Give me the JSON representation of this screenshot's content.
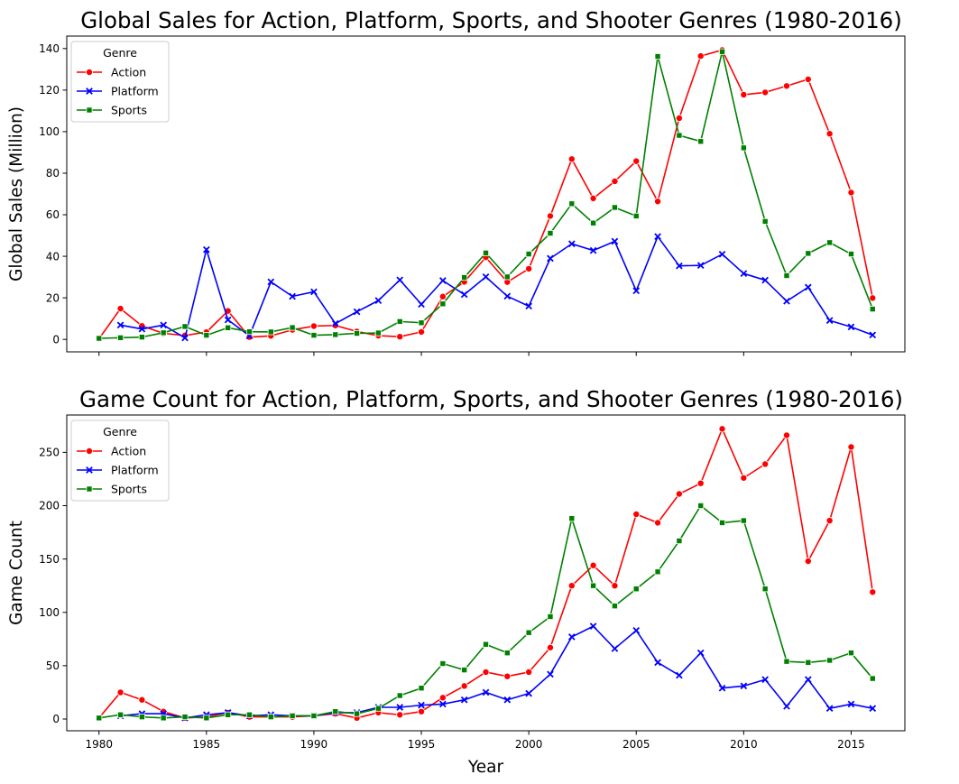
{
  "chart_data": [
    {
      "type": "line",
      "title": "Global Sales for Action, Platform, Sports, and Shooter Genres (1980-2016)",
      "xlabel": "",
      "ylabel": "Global Sales (Million)",
      "xlim": [
        1978.5,
        2017.5
      ],
      "ylim": [
        -6,
        146
      ],
      "xticks": [
        1980,
        1985,
        1990,
        1995,
        2000,
        2005,
        2010,
        2015
      ],
      "yticks": [
        0,
        20,
        40,
        60,
        80,
        100,
        120,
        140
      ],
      "show_xtick_labels": false,
      "grid": false,
      "legend": {
        "title": "Genre",
        "placement": "top-left"
      },
      "x": [
        1980,
        1981,
        1982,
        1983,
        1984,
        1985,
        1986,
        1987,
        1988,
        1989,
        1990,
        1991,
        1992,
        1993,
        1994,
        1995,
        1996,
        1997,
        1998,
        1999,
        2000,
        2001,
        2002,
        2003,
        2004,
        2005,
        2006,
        2007,
        2008,
        2009,
        2010,
        2011,
        2012,
        2013,
        2014,
        2015,
        2016
      ],
      "series": [
        {
          "name": "Action",
          "color": "#ff0000",
          "marker": "circle",
          "values": [
            0.3,
            14.8,
            6.5,
            2.9,
            1.9,
            3.5,
            13.7,
            1.1,
            1.7,
            4.6,
            6.4,
            6.7,
            3.8,
            1.8,
            1.3,
            3.6,
            20.6,
            27.7,
            39.5,
            27.6,
            34.0,
            59.4,
            86.8,
            67.9,
            76.1,
            85.8,
            66.4,
            106.5,
            136.4,
            139.3,
            117.8,
            118.9,
            122.0,
            125.2,
            99.0,
            70.7,
            19.9
          ]
        },
        {
          "name": "Platform",
          "color": "#0000ff",
          "marker": "x",
          "values": [
            null,
            6.9,
            5.0,
            6.9,
            0.7,
            43.2,
            9.4,
            1.7,
            27.7,
            20.7,
            22.9,
            7.6,
            13.3,
            18.7,
            28.6,
            16.9,
            28.3,
            21.6,
            30.1,
            20.8,
            16.0,
            39.0,
            46.0,
            42.8,
            47.2,
            23.4,
            49.5,
            35.4,
            35.6,
            41.0,
            31.7,
            28.5,
            18.4,
            25.1,
            9.1,
            6.0,
            2.1
          ]
        },
        {
          "name": "Sports",
          "color": "#008000",
          "marker": "square",
          "values": [
            0.5,
            0.8,
            1.1,
            3.2,
            6.2,
            2.0,
            5.6,
            3.7,
            3.6,
            5.7,
            2.0,
            2.3,
            2.9,
            3.1,
            8.6,
            8.0,
            17.1,
            29.8,
            41.6,
            30.1,
            41.1,
            51.1,
            65.3,
            56.0,
            63.5,
            59.4,
            136.2,
            98.2,
            95.3,
            138.5,
            92.2,
            56.8,
            30.7,
            41.4,
            46.6,
            41.1,
            14.6
          ]
        }
      ]
    },
    {
      "type": "line",
      "title": "Game Count for Action, Platform, Sports, and Shooter Genres (1980-2016)",
      "xlabel": "Year",
      "ylabel": "Game Count",
      "xlim": [
        1978.5,
        2017.5
      ],
      "ylim": [
        -11,
        285
      ],
      "xticks": [
        1980,
        1985,
        1990,
        1995,
        2000,
        2005,
        2010,
        2015
      ],
      "yticks": [
        0,
        50,
        100,
        150,
        200,
        250
      ],
      "show_xtick_labels": true,
      "grid": false,
      "legend": {
        "title": "Genre",
        "placement": "top-left"
      },
      "x": [
        1980,
        1981,
        1982,
        1983,
        1984,
        1985,
        1986,
        1987,
        1988,
        1989,
        1990,
        1991,
        1992,
        1993,
        1994,
        1995,
        1996,
        1997,
        1998,
        1999,
        2000,
        2001,
        2002,
        2003,
        2004,
        2005,
        2006,
        2007,
        2008,
        2009,
        2010,
        2011,
        2012,
        2013,
        2014,
        2015,
        2016
      ],
      "series": [
        {
          "name": "Action",
          "color": "#ff0000",
          "marker": "circle",
          "values": [
            1,
            25,
            18,
            7,
            1,
            2,
            6,
            2,
            2,
            2,
            3,
            5,
            1,
            6,
            4,
            7,
            20,
            31,
            44,
            40,
            44,
            67,
            125,
            144,
            125,
            192,
            184,
            211,
            221,
            272,
            226,
            239,
            266,
            148,
            186,
            255,
            119
          ]
        },
        {
          "name": "Platform",
          "color": "#0000ff",
          "marker": "x",
          "values": [
            null,
            3,
            5,
            5,
            1,
            4,
            6,
            3,
            4,
            3,
            3,
            6,
            6,
            11,
            11,
            13,
            14,
            18,
            25,
            18,
            24,
            42,
            77,
            87,
            66,
            83,
            53,
            41,
            62,
            29,
            31,
            37,
            12,
            37,
            10,
            14,
            10
          ]
        },
        {
          "name": "Sports",
          "color": "#008000",
          "marker": "square",
          "values": [
            1,
            4,
            2,
            1,
            2,
            1,
            4,
            4,
            2,
            3,
            3,
            7,
            5,
            10,
            22,
            29,
            52,
            46,
            70,
            62,
            81,
            96,
            188,
            125,
            106,
            122,
            138,
            167,
            200,
            184,
            186,
            122,
            54,
            53,
            55,
            62,
            38
          ]
        }
      ]
    }
  ]
}
